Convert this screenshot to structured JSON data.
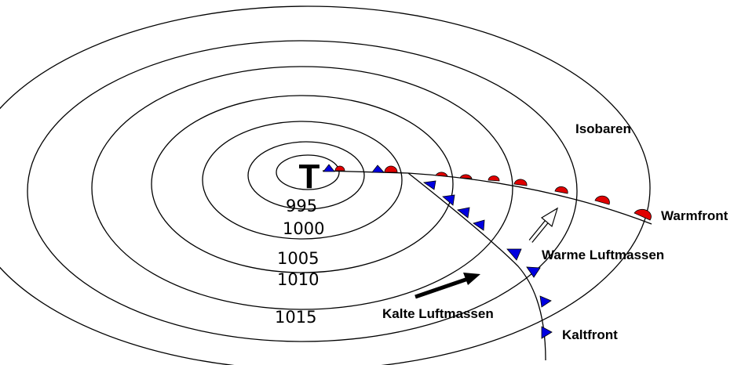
{
  "diagram": {
    "low_symbol": "T",
    "isobar_values": [
      "995",
      "1000",
      "1005",
      "1010",
      "1015"
    ],
    "labels": {
      "isobars": "Isobaren",
      "warm_front": "Warmfront",
      "cold_front": "Kaltfront",
      "warm_air": "Warme Luftmassen",
      "cold_air": "Kalte Luftmassen"
    },
    "colors": {
      "warm_front_symbol": "#e00000",
      "cold_front_symbol": "#0000e0",
      "lines": "#000000",
      "background": "#ffffff"
    },
    "icons": {
      "warm_air_arrow": "hollow-arrow",
      "cold_air_arrow": "solid-arrow"
    }
  }
}
